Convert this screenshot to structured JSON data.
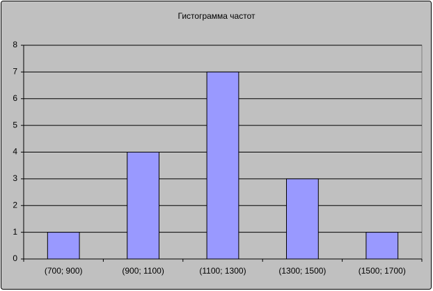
{
  "chart_data": {
    "type": "bar",
    "title": "Гистограмма частот",
    "categories": [
      "(700; 900)",
      "(900; 1100)",
      "(1100; 1300)",
      "(1300; 1500)",
      "(1500; 1700)"
    ],
    "values": [
      1,
      4,
      7,
      3,
      1
    ],
    "color": "#9999ff",
    "ylim": [
      0,
      8
    ],
    "yticks": [
      0,
      1,
      2,
      3,
      4,
      5,
      6,
      7,
      8
    ],
    "grid": true
  }
}
